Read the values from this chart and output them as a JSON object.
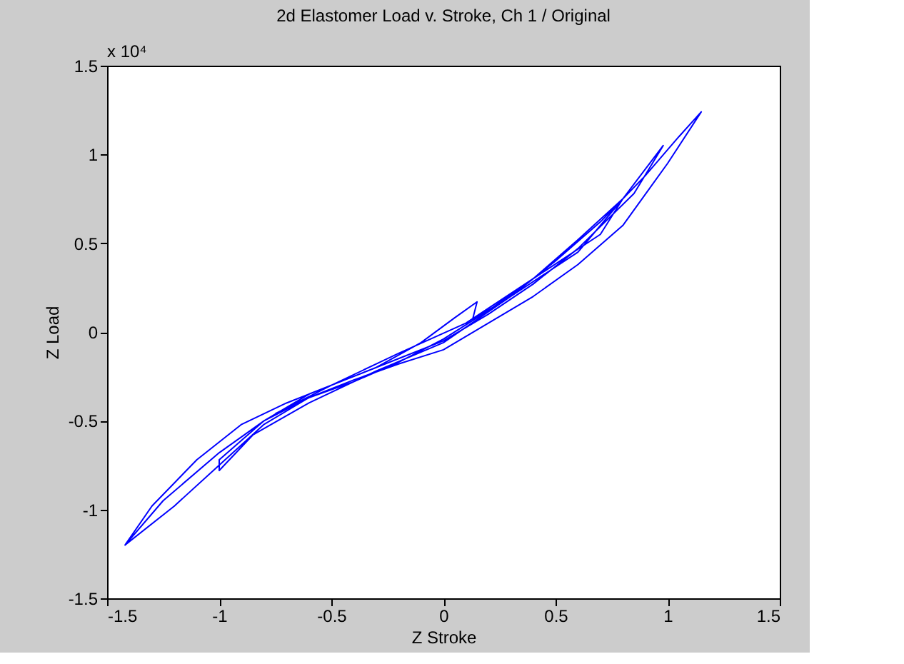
{
  "chart_data": {
    "type": "line",
    "title": "2d Elastomer Load v. Stroke, Ch 1 / Original",
    "xlabel": "Z Stroke",
    "ylabel": "Z Load",
    "annotations": [
      "x 10⁴"
    ],
    "xlim": [
      -1.5,
      1.5
    ],
    "ylim": [
      -1.5,
      1.5
    ],
    "xticks": [
      -1.5,
      -1,
      -0.5,
      0,
      0.5,
      1,
      1.5
    ],
    "yticks": [
      -1.5,
      -1,
      -0.5,
      0,
      0.5,
      1,
      1.5
    ],
    "grid": false,
    "series": [
      {
        "color": "#0000ff",
        "x": [
          -1.42,
          -1.3,
          -1.1,
          -0.9,
          -0.7,
          -0.5,
          -0.3,
          -0.1,
          0.05,
          0.15,
          0.13,
          0.3,
          0.5,
          0.7,
          0.9,
          1.05,
          1.15,
          1.0,
          0.8,
          0.6,
          0.4,
          0.2,
          0.0,
          -0.2,
          -0.4,
          -0.6,
          -0.8,
          -1.0,
          -1.2,
          -1.42,
          -1.25,
          -1.0,
          -0.8,
          -0.6,
          -0.4,
          -0.2,
          0.0,
          0.2,
          0.4,
          0.6,
          0.8,
          0.98,
          0.85,
          0.6,
          0.4,
          0.2,
          0.0,
          -0.2,
          -0.4,
          -0.6,
          -0.8,
          -1.0,
          -1.0,
          -0.85,
          -0.6,
          -0.3,
          0.0,
          0.3,
          0.6,
          0.8,
          0.7,
          0.4,
          0.1,
          -0.2,
          -0.5,
          -0.75
        ],
        "values": [
          -1.2,
          -0.98,
          -0.72,
          -0.52,
          -0.4,
          -0.3,
          -0.2,
          -0.06,
          0.08,
          0.17,
          0.07,
          0.2,
          0.4,
          0.62,
          0.88,
          1.1,
          1.24,
          0.95,
          0.6,
          0.38,
          0.2,
          0.05,
          -0.1,
          -0.18,
          -0.27,
          -0.37,
          -0.52,
          -0.75,
          -0.98,
          -1.2,
          -0.95,
          -0.68,
          -0.5,
          -0.37,
          -0.28,
          -0.17,
          -0.04,
          0.12,
          0.3,
          0.52,
          0.75,
          1.05,
          0.78,
          0.47,
          0.27,
          0.1,
          -0.05,
          -0.15,
          -0.25,
          -0.35,
          -0.5,
          -0.72,
          -0.78,
          -0.58,
          -0.4,
          -0.22,
          -0.06,
          0.2,
          0.45,
          0.75,
          0.55,
          0.3,
          0.05,
          -0.12,
          -0.3,
          -0.46
        ]
      }
    ]
  }
}
